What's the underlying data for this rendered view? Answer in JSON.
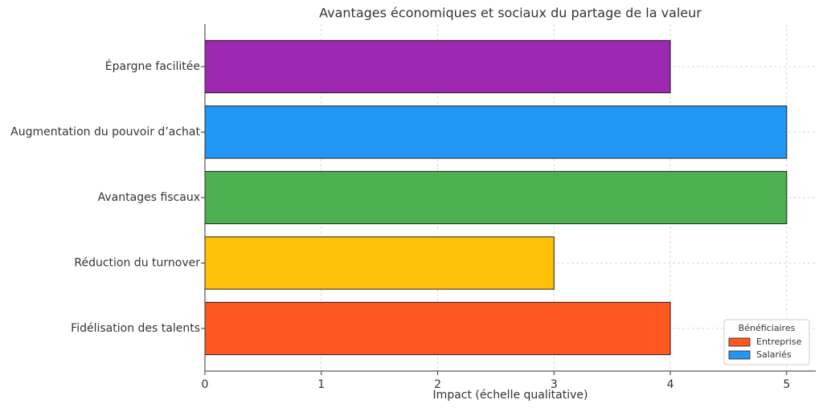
{
  "chart_data": {
    "type": "barh",
    "title": "Avantages économiques et sociaux du partage de la valeur",
    "x_label": "Impact (échelle qualitative)",
    "categories": [
      "Fidélisation des talents",
      "Réduction du turnover",
      "Avantages fiscaux",
      "Augmentation du pouvoir d’achat",
      "Épargne facilitée"
    ],
    "values": [
      4,
      3,
      5,
      5,
      4
    ],
    "colors": [
      "#FF5722",
      "#FFC107",
      "#4CAF50",
      "#2196F3",
      "#9C27B0"
    ],
    "xlim": [
      0,
      5.25
    ],
    "xticks": [
      0,
      1,
      2,
      3,
      4,
      5
    ],
    "grid": true,
    "legend": {
      "title": "Bénéficiaires",
      "position": "lower right",
      "entries": [
        {
          "name": "Entreprise",
          "color": "#FF5722"
        },
        {
          "name": "Salariés",
          "color": "#2196F3"
        }
      ]
    }
  }
}
